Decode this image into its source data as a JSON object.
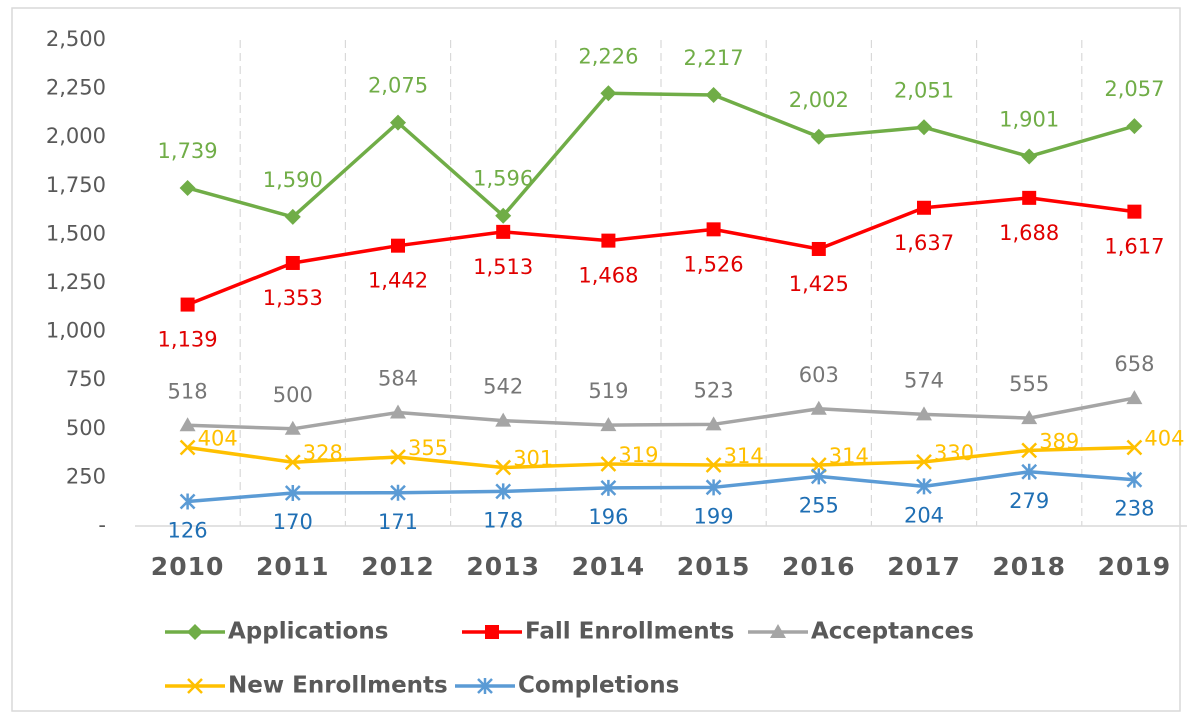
{
  "chart_data": {
    "type": "line",
    "categories": [
      "2010",
      "2011",
      "2012",
      "2013",
      "2014",
      "2015",
      "2016",
      "2017",
      "2018",
      "2019"
    ],
    "series": [
      {
        "name": "Applications",
        "color": "#70ad47",
        "label_color": "#70ad47",
        "marker": "diamond",
        "values": [
          1739,
          1590,
          2075,
          1596,
          2226,
          2217,
          2002,
          2051,
          1901,
          2057
        ],
        "value_labels": [
          "1,739",
          "1,590",
          "2,075",
          "1,596",
          "2,226",
          "2,217",
          "2,002",
          "2,051",
          "1,901",
          "2,057"
        ]
      },
      {
        "name": "Fall Enrollments",
        "color": "#ff0000",
        "label_color": "#e00000",
        "marker": "square",
        "values": [
          1139,
          1353,
          1442,
          1513,
          1468,
          1526,
          1425,
          1637,
          1688,
          1617
        ],
        "value_labels": [
          "1,139",
          "1,353",
          "1,442",
          "1,513",
          "1,468",
          "1,526",
          "1,425",
          "1,637",
          "1,688",
          "1,617"
        ]
      },
      {
        "name": "Acceptances",
        "color": "#a5a5a5",
        "label_color": "#767676",
        "marker": "triangle",
        "values": [
          518,
          500,
          584,
          542,
          519,
          523,
          603,
          574,
          555,
          658
        ]
      },
      {
        "name": "New Enrollments",
        "color": "#ffc000",
        "label_color": "#ffc000",
        "marker": "x",
        "values": [
          404,
          328,
          355,
          301,
          319,
          314,
          314,
          330,
          389,
          404
        ]
      },
      {
        "name": "Completions",
        "color": "#5b9bd5",
        "label_color": "#1f6fb4",
        "marker": "asterisk",
        "values": [
          126,
          170,
          171,
          178,
          196,
          199,
          255,
          204,
          279,
          238
        ]
      }
    ],
    "ylim": [
      0,
      2500
    ],
    "yticks": [
      {
        "value": 0,
        "label": "-"
      },
      250,
      500,
      750,
      {
        "value": 1000,
        "label": "1,000"
      },
      {
        "value": 1250,
        "label": "1,250"
      },
      {
        "value": 1500,
        "label": "1,500"
      },
      {
        "value": 1750,
        "label": "1,750"
      },
      {
        "value": 2000,
        "label": "2,000"
      },
      {
        "value": 2250,
        "label": "2,250"
      },
      {
        "value": 2500,
        "label": "2,500"
      }
    ],
    "grid": "vertical",
    "legend": "bottom"
  }
}
